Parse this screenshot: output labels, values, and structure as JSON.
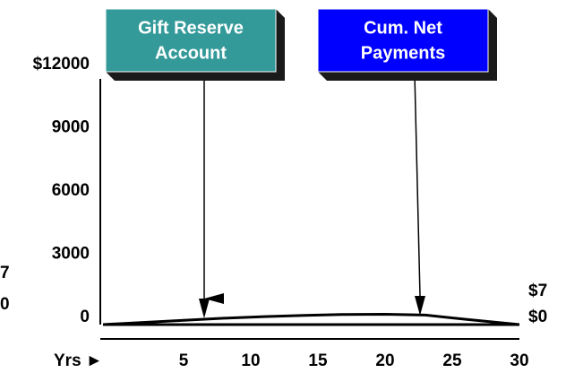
{
  "chart_data": {
    "type": "line",
    "x": [
      -1,
      2,
      5,
      8,
      11,
      14,
      17,
      20,
      23,
      26,
      30
    ],
    "series": [
      {
        "color": "#000000",
        "values": [
          0,
          100,
          200,
          300,
          380,
          440,
          480,
          490,
          450,
          250,
          0
        ]
      },
      {
        "color": "#000000",
        "values": [
          0,
          0,
          0,
          0,
          0,
          0,
          0,
          0,
          0,
          0,
          0
        ]
      }
    ],
    "xlim": [
      -1,
      30
    ],
    "xticks": [
      5,
      10,
      15,
      20,
      25,
      30
    ],
    "x_axis_label": "Yrs ►",
    "ylim": [
      0,
      12000
    ],
    "yticks": [
      0,
      3000,
      6000,
      9000,
      {
        "value": 12000,
        "label": "$12000"
      }
    ],
    "callouts": [
      {
        "lines": [
          "Gift Reserve",
          "Account"
        ],
        "color": "#339999",
        "shadow": "#1a1a1a"
      },
      {
        "lines": [
          "Cum. Net",
          "Payments"
        ],
        "color": "#0000ff",
        "shadow": "#1a1a1a"
      }
    ],
    "left_labels": [
      "7",
      "0"
    ],
    "right_labels": [
      "$7",
      "$0"
    ]
  }
}
